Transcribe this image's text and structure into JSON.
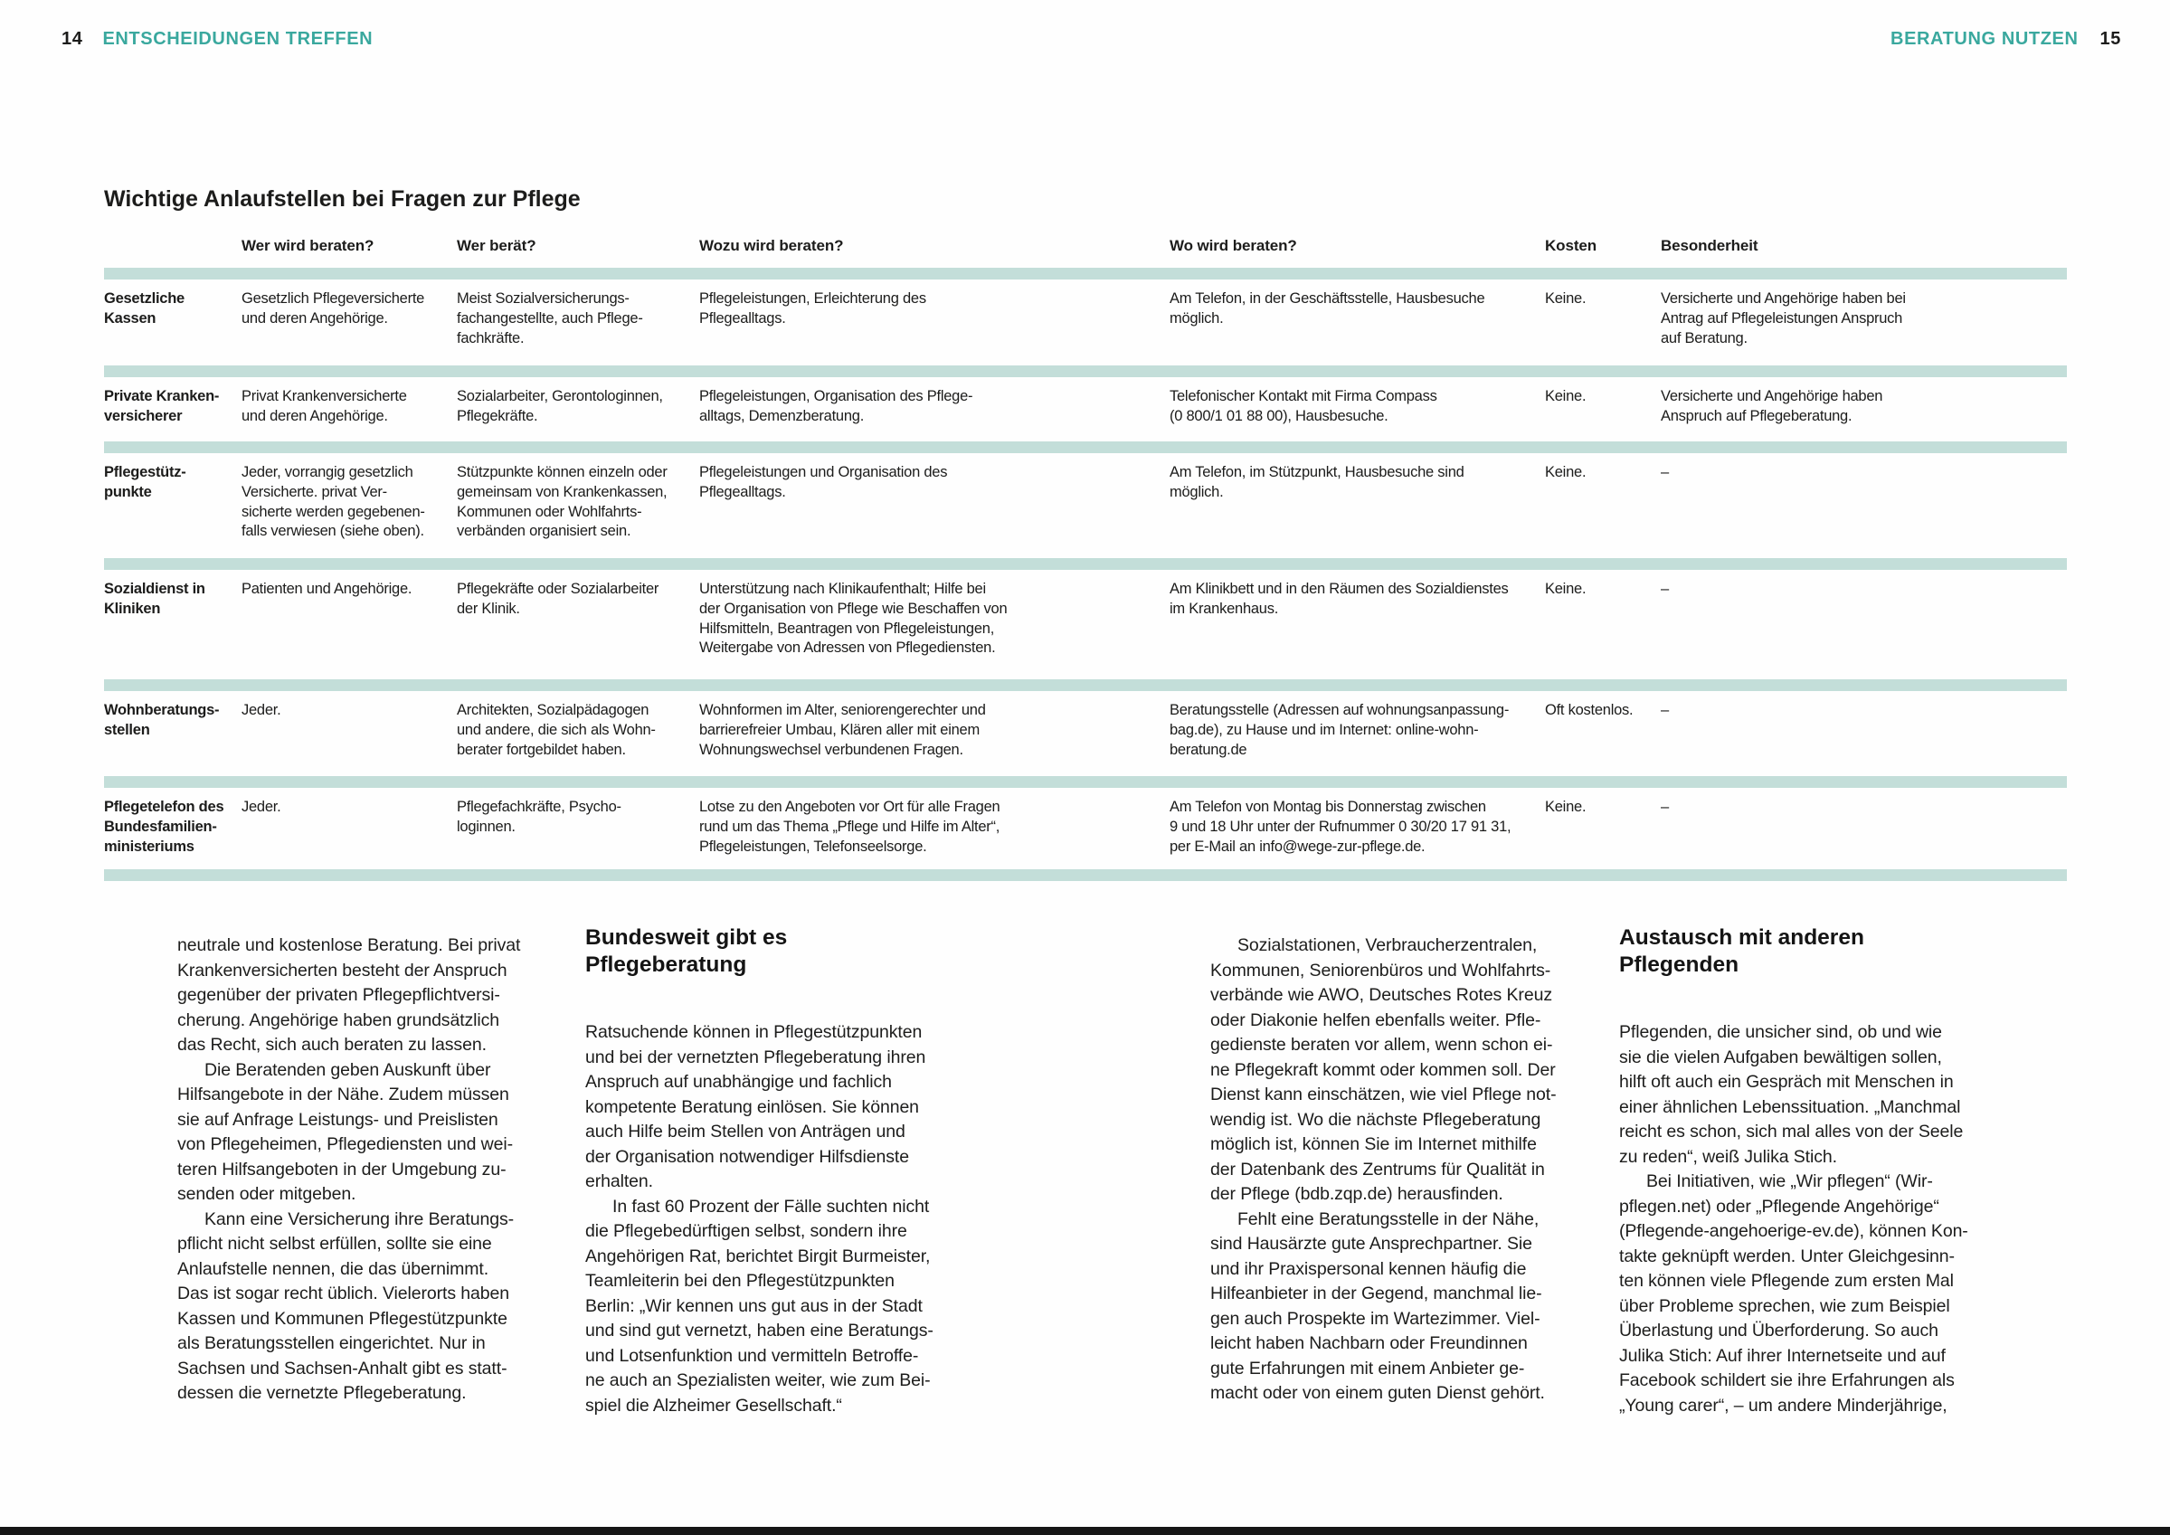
{
  "page": {
    "left_page_number": "14",
    "left_section": "ENTSCHEIDUNGEN TREFFEN",
    "right_section": "BERATUNG NUTZEN",
    "right_page_number": "15",
    "accent_color": "#3aa89e",
    "divider_color": "#c3ded9"
  },
  "table": {
    "title": "Wichtige Anlaufstellen bei Fragen zur Pflege",
    "headers": [
      "Wer wird beraten?",
      "Wer berät?",
      "Wozu wird beraten?",
      "Wo wird beraten?",
      "Kosten",
      "Besonderheit"
    ],
    "rows": [
      {
        "name": "Gesetzliche\nKassen",
        "cells": [
          "Gesetzlich Pflegeversicherte\nund deren Angehörige.",
          "Meist Sozialversicherungs-\nfachangestellte, auch Pflege-\nfachkräfte.",
          "Pflegeleistungen, Erleichterung des\nPflegealltags.",
          "Am Telefon, in der Geschäftsstelle, Hausbesuche\nmöglich.",
          "Keine.",
          "Versicherte und Angehörige haben bei\nAntrag auf Pflegeleistungen Anspruch\nauf Beratung."
        ]
      },
      {
        "name": "Private Kranken-\nversicherer",
        "cells": [
          "Privat Krankenversicherte\nund deren Angehörige.",
          "Sozialarbeiter, Gerontologinnen,\nPflegekräfte.",
          "Pflegeleistungen, Organisation des Pflege-\nalltags, Demenzberatung.",
          "Telefonischer Kontakt mit Firma Compass\n(0 800/1 01 88 00), Hausbesuche.",
          "Keine.",
          "Versicherte und Angehörige haben\nAnspruch auf Pflegeberatung."
        ]
      },
      {
        "name": "Pflegestütz-\npunkte",
        "cells": [
          "Jeder, vorrangig gesetzlich\nVersicherte. privat Ver-\nsicherte werden gegebenen-\nfalls verwiesen (siehe oben).",
          "Stützpunkte können einzeln oder\ngemeinsam von Krankenkassen,\nKommunen oder Wohlfahrts-\nverbänden organisiert sein.",
          "Pflegeleistungen und Organisation des\nPflegealltags.",
          "Am Telefon, im Stützpunkt, Hausbesuche sind\nmöglich.",
          "Keine.",
          "–"
        ]
      },
      {
        "name": "Sozialdienst in\nKliniken",
        "cells": [
          "Patienten und Angehörige.",
          "Pflegekräfte oder Sozialarbeiter\nder Klinik.",
          "Unterstützung nach Klinikaufenthalt; Hilfe bei\nder Organisation von Pflege wie Beschaffen von\nHilfsmitteln, Beantragen von Pflegeleistungen,\nWeitergabe von Adressen von Pflegediensten.",
          "Am Klinikbett und in den Räumen des Sozialdienstes\nim Krankenhaus.",
          "Keine.",
          "–"
        ]
      },
      {
        "name": "Wohnberatungs-\nstellen",
        "cells": [
          "Jeder.",
          "Architekten, Sozialpädagogen\nund andere, die sich als Wohn-\nberater fortgebildet haben.",
          "Wohnformen im Alter, seniorengerechter und\nbarrierefreier Umbau, Klären aller mit einem\nWohnungswechsel verbundenen Fragen.",
          "Beratungsstelle (Adressen auf wohnungsanpassung-\nbag.de), zu Hause und im Internet: online-wohn-\nberatung.de",
          "Oft kostenlos.",
          "–"
        ]
      },
      {
        "name": "Pflegetelefon des\nBundesfamilien-\nministeriums",
        "cells": [
          "Jeder.",
          "Pflegefachkräfte, Psycho-\nloginnen.",
          "Lotse zu den Angeboten vor Ort für alle Fragen\nrund um das Thema „Pflege und Hilfe im Alter“,\nPflegeleistungen, Telefonseelsorge.",
          "Am Telefon von Montag bis Donnerstag zwischen\n9 und 18 Uhr unter der Rufnummer 0 30/20 17 91 31,\nper E-Mail an info@wege-zur-pflege.de.",
          "Keine.",
          "–"
        ]
      }
    ]
  },
  "articles": {
    "col1": {
      "paragraphs": [
        {
          "text": "neutrale und kostenlose Beratung. Bei privat\nKrankenversicherten besteht der Anspruch\ngegenüber der privaten Pflegepflichtversi-\ncherung. Angehörige haben grundsätzlich\ndas Recht, sich auch beraten zu lassen."
        },
        {
          "text": "Die Beratenden geben Auskunft über\nHilfsangebote in der Nähe. Zudem müssen\nsie auf Anfrage Leistungs- und Preislisten\nvon Pflegeheimen, Pflegediensten und wei-\nteren Hilfsangeboten in der Umgebung zu-\nsenden oder mitgeben."
        },
        {
          "text": "Kann eine Versicherung ihre Beratungs-\npflicht nicht selbst erfüllen, sollte sie eine\nAnlaufstelle nennen, die das übernimmt.\nDas ist sogar recht üblich. Vielerorts haben\nKassen und Kommunen Pflegestützpunkte\nals Beratungsstellen eingerichtet. Nur in\nSachsen und Sachsen-Anhalt gibt es statt-\ndessen die vernetzte Pflegeberatung."
        }
      ]
    },
    "col2": {
      "heading": "Bundesweit gibt es\nPflegeberatung",
      "paragraphs": [
        {
          "text": "Ratsuchende können in Pflegestützpunkten\nund bei der vernetzten Pflegeberatung ihren\nAnspruch auf unabhängige und fachlich\nkompetente Beratung einlösen. Sie können\nauch Hilfe beim Stellen von Anträgen und\nder Organisation notwendiger Hilfsdienste\nerhalten."
        },
        {
          "text": "In fast 60 Prozent der Fälle suchten nicht\ndie Pflegebedürftigen selbst, sondern ihre\nAngehörigen Rat, berichtet Birgit Burmeister,\nTeamleiterin bei den Pflegestützpunkten\nBerlin: „Wir kennen uns gut aus in der Stadt\nund sind gut vernetzt, haben eine Beratungs-\nund Lotsenfunktion und vermitteln Betroffe-\nne auch an Spezialisten weiter, wie zum Bei-\nspiel die Alzheimer Gesellschaft.“"
        }
      ]
    },
    "col3": {
      "paragraphs": [
        {
          "text": "Sozialstationen, Verbraucherzentralen,\nKommunen, Seniorenbüros und Wohlfahrts-\nverbände wie AWO, Deutsches Rotes Kreuz\noder Diakonie helfen ebenfalls weiter. Pfle-\ngedienste beraten vor allem, wenn schon ei-\nne Pflegekraft kommt oder kommen soll. Der\nDienst kann einschätzen, wie viel Pflege not-\nwendig ist. Wo die nächste Pflegeberatung\nmöglich ist, können Sie im Internet mithilfe\nder Datenbank des Zentrums für Qualität in\nder Pflege (bdb.zqp.de) herausfinden."
        },
        {
          "text": "Fehlt eine Beratungsstelle in der Nähe,\nsind Hausärzte gute Ansprechpartner. Sie\nund ihr Praxispersonal kennen häufig die\nHilfeanbieter in der Gegend, manchmal lie-\ngen auch Prospekte im Wartezimmer. Viel-\nleicht haben Nachbarn oder Freundinnen\ngute Erfahrungen mit einem Anbieter ge-\nmacht oder von einem guten Dienst gehört."
        }
      ]
    },
    "col4": {
      "heading": "Austausch mit anderen\nPflegenden",
      "paragraphs": [
        {
          "text": "Pflegenden, die unsicher sind, ob und wie\nsie die vielen Aufgaben bewältigen sollen,\nhilft oft auch ein Gespräch mit Menschen in\neiner ähnlichen Lebenssituation. „Manchmal\nreicht es schon, sich mal alles von der Seele\nzu reden“, weiß Julika Stich."
        },
        {
          "text": "Bei Initiativen, wie „Wir pflegen“ (Wir-\npflegen.net) oder „Pflegende Angehörige“\n(Pflegende-angehoerige-ev.de), können Kon-\ntakte geknüpft werden. Unter Gleichgesinn-\nten können viele Pflegende zum ersten Mal\nüber Probleme sprechen, wie zum Beispiel\nÜberlastung und Überforderung. So auch\nJulika Stich: Auf ihrer Internetseite und auf\nFacebook schildert sie ihre Erfahrungen als\n„Young carer“, – um andere Minderjährige,"
        }
      ]
    }
  }
}
